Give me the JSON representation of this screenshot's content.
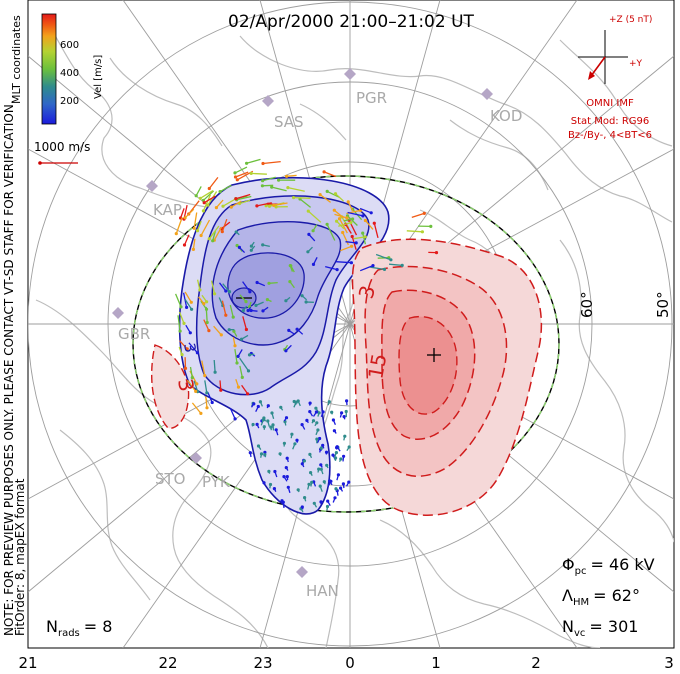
{
  "title": "02/Apr/2000 21:00–21:02 UT",
  "side_note": "NOTE: FOR PREVIEW PURPOSES ONLY. PLEASE CONTACT VT-SD STAFF FOR VERIFICATION.",
  "side_note2": "FitOrder: 8, mapEX format",
  "coords_label": "MLT coordinates",
  "colorbar": {
    "label": "Vel [m/s]",
    "ticks": [
      "200",
      "400",
      "600"
    ],
    "colors": [
      "#1b1bdc",
      "#2f8c8c",
      "#6cc03c",
      "#b4d232",
      "#f2a21b",
      "#f05a14",
      "#e41a1a"
    ]
  },
  "scale_label": "1000 m/s",
  "imf": {
    "z_label": "+Z (5 nT)",
    "y_label": "+Y",
    "omni": "OMNI IMF",
    "stat_mod": "Stat Mod: RG96",
    "condition": "Bz-/By-, 4<BT<6",
    "color": "#cc0000"
  },
  "stations": [
    "PGR",
    "KOD",
    "SAS",
    "KAP",
    "GBR",
    "STO",
    "PYK",
    "HAN"
  ],
  "lat_labels": [
    "60°",
    "50°"
  ],
  "mlt_labels": [
    "21",
    "22",
    "23",
    "0",
    "1",
    "2",
    "3"
  ],
  "contour_labels": [
    "3",
    "15",
    "-3"
  ],
  "stats": {
    "phi_label": "Φ",
    "phi_sub": "pc",
    "phi_value": "= 46 kV",
    "lambda_label": "Λ",
    "lambda_sub": "HM",
    "lambda_value": "= 62°",
    "nvc_label": "N",
    "nvc_sub": "vc",
    "nvc_value": "= 301",
    "nrads_label": "N",
    "nrads_sub": "rads",
    "nrads_value": "= 8"
  }
}
